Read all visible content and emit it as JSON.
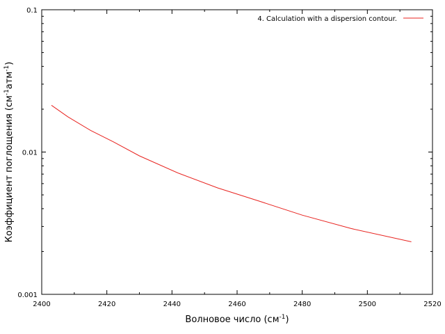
{
  "chart_data": {
    "type": "line",
    "title": "",
    "xlabel": "Волновое число (см",
    "xlabel_sup": "-1",
    "xlabel_end": ")",
    "ylabel_main": "Коэффициент поглощения (см",
    "ylabel_sup1": "-1",
    "ylabel_mid": "атм",
    "ylabel_sup2": "-1",
    "ylabel_end": ")",
    "xlim": [
      2400,
      2520
    ],
    "ylim": [
      0.001,
      0.1
    ],
    "yscale": "log",
    "xticks": [
      2400,
      2420,
      2440,
      2460,
      2480,
      2500,
      2520
    ],
    "xtick_labels": [
      "2400",
      "2420",
      "2440",
      "2460",
      "2480",
      "2500",
      "2520"
    ],
    "yticks": [
      0.001,
      0.01,
      0.1
    ],
    "ytick_labels": [
      "0.001",
      "0.01",
      "0.1"
    ],
    "grid": false,
    "legend_position": "top-right",
    "series": [
      {
        "name": "4. Calculation with a dispersion contour.",
        "color": "#e8231f",
        "x": [
          2403,
          2408,
          2415,
          2422,
          2430,
          2442,
          2454,
          2467,
          2480,
          2495,
          2513.5
        ],
        "y": [
          0.0213,
          0.0177,
          0.0142,
          0.0118,
          0.0094,
          0.0071,
          0.0056,
          0.0045,
          0.0036,
          0.0029,
          0.00234
        ]
      }
    ]
  }
}
